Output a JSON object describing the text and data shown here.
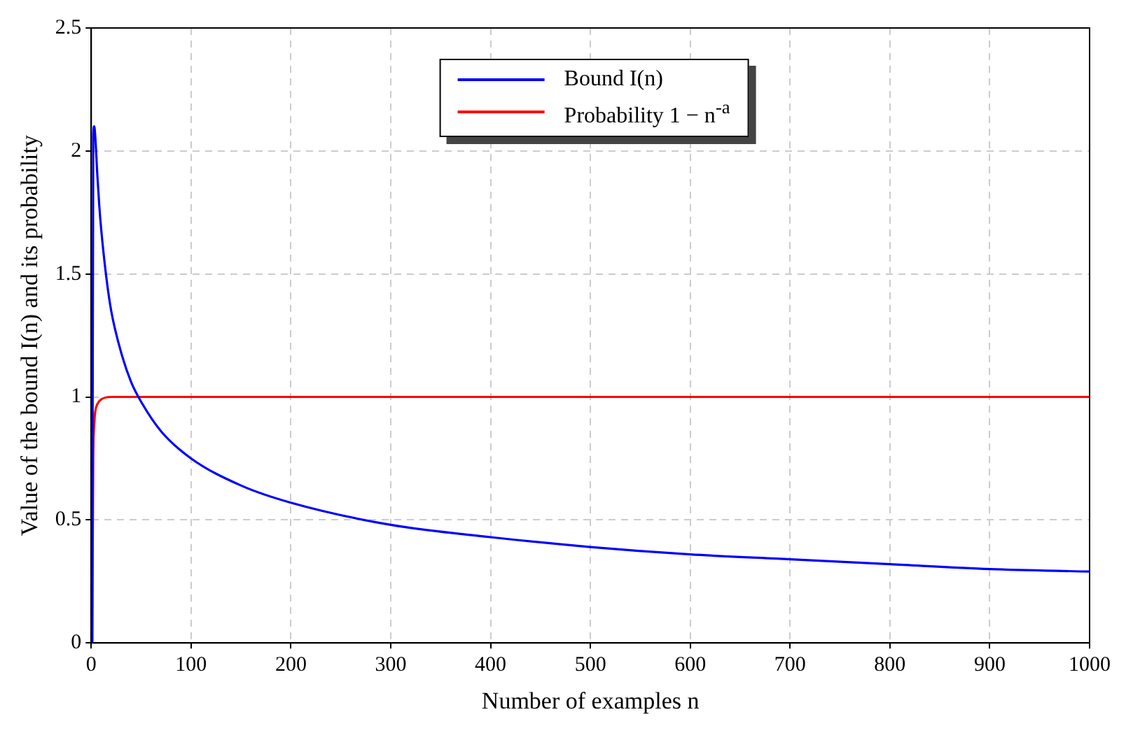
{
  "chart_data": {
    "type": "line",
    "xlabel": "Number of examples n",
    "ylabel": "Value of the bound I(n) and its probability",
    "xlim": [
      0,
      1000
    ],
    "xticks": [
      0,
      100,
      200,
      300,
      400,
      500,
      600,
      700,
      800,
      900,
      1000
    ],
    "ylim": [
      0,
      2.5
    ],
    "yticks": [
      0,
      0.5,
      1,
      1.5,
      2,
      2.5
    ],
    "grid": true,
    "legend": "top",
    "marker": "none",
    "line_style": "solid",
    "series": [
      {
        "name": "Bound I(n)",
        "color": "#0000ff",
        "x": [
          1,
          2,
          3,
          4,
          6,
          8,
          10,
          15,
          20,
          30,
          40,
          50,
          70,
          100,
          150,
          200,
          300,
          400,
          500,
          600,
          700,
          800,
          900,
          1000
        ],
        "values": [
          0,
          2.06,
          2.1,
          2.06,
          1.91,
          1.78,
          1.68,
          1.49,
          1.35,
          1.18,
          1.06,
          0.98,
          0.86,
          0.75,
          0.64,
          0.57,
          0.48,
          0.43,
          0.39,
          0.36,
          0.34,
          0.32,
          0.3,
          0.29
        ]
      },
      {
        "name": "Probability 1 − n$^{-a}$",
        "color": "#ff0000",
        "x": [
          1,
          2,
          3,
          4,
          6,
          10,
          20,
          50,
          1000
        ],
        "values": [
          0,
          0.75,
          0.89,
          0.94,
          0.97,
          0.99,
          1,
          1,
          1
        ]
      }
    ]
  }
}
